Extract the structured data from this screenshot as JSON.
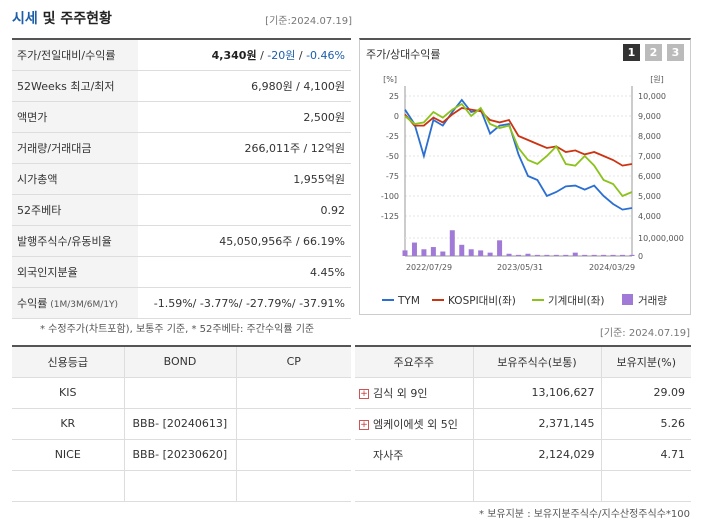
{
  "header": {
    "title_main": "시세",
    "title_rest": " 및 주주현황",
    "date": "[기준:2024.07.19]"
  },
  "info_rows": [
    {
      "label": "주가/전일대비/수익률",
      "v1": "4,340원",
      "v2": " / ",
      "v3": "-20원",
      "v4": " / ",
      "v5": "-0.46%"
    },
    {
      "label": "52Weeks 최고/최저",
      "value": "6,980원 / 4,100원"
    },
    {
      "label": "액면가",
      "value": "2,500원"
    },
    {
      "label": "거래량/거래대금",
      "value": "266,011주 / 12억원"
    },
    {
      "label": "시가총액",
      "value": "1,955억원"
    },
    {
      "label": "52주베타",
      "value": "0.92"
    },
    {
      "label": "발행주식수/유동비율",
      "value": "45,050,956주 / 66.19%"
    },
    {
      "label": "외국인지분율",
      "value": "4.45%"
    },
    {
      "label": "수익률",
      "label_small": " (1M/3M/6M/1Y)",
      "value": "-1.59%/ -3.77%/ -27.79%/ -37.91%"
    }
  ],
  "note": "* 수정주가(차트포함), 보통주 기준, * 52주베타: 주간수익률 기준",
  "date2": "[기준: 2024.07.19]",
  "chart": {
    "title": "주가/상대수익률",
    "pages": [
      "1",
      "2",
      "3"
    ],
    "left_unit": "[%]",
    "right_unit": "[원]",
    "left_ticks": [
      "25",
      "0",
      "-25",
      "-50",
      "-75",
      "-100",
      "-125"
    ],
    "right_ticks": [
      "10,000",
      "9,000",
      "8,000",
      "7,000",
      "6,000",
      "5,000",
      "4,000"
    ],
    "vol_tick_top": "10,000,000",
    "vol_tick_bottom": "0",
    "x_ticks": [
      "2022/07/29",
      "2023/05/31",
      "2024/03/29"
    ],
    "legend": [
      "TYM",
      "KOSPI대비(좌)",
      "기계대비(좌)",
      "거래량"
    ],
    "colors": {
      "tym": "#2a6fd1",
      "kospi": "#cc3311",
      "machine": "#8bc21c",
      "volume": "#a07ad6"
    }
  },
  "chart_data": {
    "type": "line",
    "series": [
      {
        "name": "TYM",
        "values": [
          8,
          -10,
          -50,
          -5,
          -12,
          5,
          20,
          5,
          8,
          -22,
          -12,
          -10,
          -48,
          -75,
          -80,
          -100,
          -95,
          -88,
          -87,
          -92,
          -87,
          -100,
          -110,
          -117,
          -115
        ]
      },
      {
        "name": "KOSPI대비(좌)",
        "values": [
          2,
          -12,
          -12,
          -2,
          -8,
          2,
          10,
          8,
          6,
          -5,
          -8,
          -5,
          -25,
          -30,
          -35,
          -40,
          -38,
          -45,
          -43,
          -48,
          -45,
          -50,
          -55,
          -62,
          -60
        ]
      },
      {
        "name": "기계대비(좌)",
        "values": [
          0,
          -10,
          -8,
          5,
          -2,
          8,
          15,
          0,
          10,
          -10,
          -15,
          -12,
          -40,
          -55,
          -60,
          -50,
          -38,
          -60,
          -62,
          -50,
          -62,
          -80,
          -85,
          -100,
          -95
        ]
      },
      {
        "name": "거래량",
        "values": [
          0.5,
          1.2,
          0.6,
          0.8,
          0.4,
          2.3,
          1.0,
          0.6,
          0.5,
          0.3,
          1.4,
          0.2,
          0.1,
          0.2,
          0.1,
          0.1,
          0.1,
          0.1,
          0.3,
          0.1,
          0.1,
          0.1,
          0.1,
          0.1,
          0.1
        ]
      }
    ],
    "ylim": [
      -125,
      25
    ],
    "y2lim": [
      4000,
      10000
    ]
  },
  "credit": {
    "headers": [
      "신용등급",
      "BOND",
      "CP"
    ],
    "rows": [
      {
        "agency": "KIS",
        "bond": "",
        "cp": ""
      },
      {
        "agency": "KR",
        "bond": "BBB-  [20240613]",
        "cp": ""
      },
      {
        "agency": "NICE",
        "bond": "BBB-  [20230620]",
        "cp": ""
      },
      {
        "agency": "",
        "bond": "",
        "cp": ""
      }
    ]
  },
  "holders": {
    "headers": [
      "주요주주",
      "보유주식수(보통)",
      "보유지분(%)"
    ],
    "rows": [
      {
        "name": "김식 외 9인",
        "shares": "13,106,627",
        "pct": "29.09",
        "expand": "+"
      },
      {
        "name": "엠케이에셋 외 5인",
        "shares": "2,371,145",
        "pct": "5.26",
        "expand": "+"
      },
      {
        "name": "자사주",
        "shares": "2,124,029",
        "pct": "4.71",
        "expand": ""
      },
      {
        "name": "",
        "shares": "",
        "pct": "",
        "expand": ""
      }
    ]
  },
  "footnote": "* 보유지분 : 보유지분주식수/지수산정주식수*100"
}
